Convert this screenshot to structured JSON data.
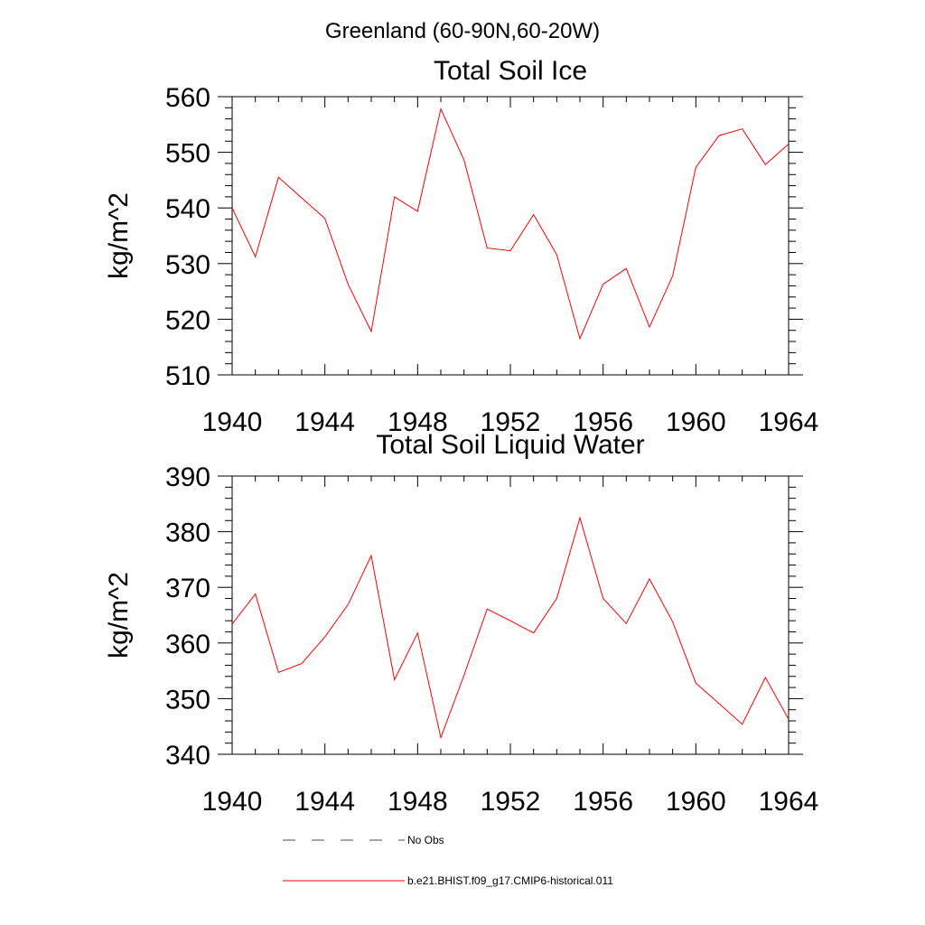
{
  "figure": {
    "title": "Greenland (60-90N,60-20W)"
  },
  "chart_data": [
    {
      "type": "line",
      "title": "Total Soil Ice",
      "xlabel": "",
      "ylabel": "kg/m^2",
      "xlim": [
        1940,
        1964
      ],
      "ylim": [
        510,
        560
      ],
      "x_ticks": [
        1940,
        1944,
        1948,
        1952,
        1956,
        1960,
        1964
      ],
      "y_ticks": [
        510,
        520,
        530,
        540,
        550,
        560
      ],
      "grid": false,
      "series": [
        {
          "name": "b.e21.BHIST.f09_g17.CMIP6-historical.011",
          "color": "#ff0000",
          "x": [
            1940,
            1941,
            1942,
            1943,
            1944,
            1945,
            1946,
            1947,
            1948,
            1949,
            1950,
            1951,
            1952,
            1953,
            1954,
            1955,
            1956,
            1957,
            1958,
            1959,
            1960,
            1961,
            1962,
            1963,
            1964
          ],
          "y": [
            540.0,
            531.2,
            545.5,
            541.8,
            538.1,
            526.3,
            517.8,
            542.0,
            539.4,
            557.8,
            548.6,
            532.8,
            532.3,
            538.8,
            531.6,
            516.5,
            526.3,
            529.1,
            518.6,
            527.8,
            547.3,
            553.0,
            554.2,
            547.8,
            551.5
          ]
        }
      ]
    },
    {
      "type": "line",
      "title": "Total Soil Liquid Water",
      "xlabel": "",
      "ylabel": "kg/m^2",
      "xlim": [
        1940,
        1964
      ],
      "ylim": [
        340,
        390
      ],
      "x_ticks": [
        1940,
        1944,
        1948,
        1952,
        1956,
        1960,
        1964
      ],
      "y_ticks": [
        340,
        350,
        360,
        370,
        380,
        390
      ],
      "grid": false,
      "series": [
        {
          "name": "b.e21.BHIST.f09_g17.CMIP6-historical.011",
          "color": "#ff0000",
          "x": [
            1940,
            1941,
            1942,
            1943,
            1944,
            1945,
            1946,
            1947,
            1948,
            1949,
            1950,
            1951,
            1952,
            1953,
            1954,
            1955,
            1956,
            1957,
            1958,
            1959,
            1960,
            1961,
            1962,
            1963,
            1964
          ],
          "y": [
            363.4,
            368.8,
            354.7,
            356.3,
            361.1,
            366.9,
            375.7,
            353.4,
            361.8,
            343.0,
            354.2,
            366.1,
            364.0,
            361.8,
            368.0,
            382.5,
            368.0,
            363.5,
            371.5,
            363.8,
            352.8,
            349.1,
            345.4,
            353.8,
            346.3
          ]
        }
      ]
    }
  ],
  "legend": {
    "placement": "bottom",
    "items": [
      {
        "label": "No Obs",
        "style": "dashed",
        "color": "#4a4a6a"
      },
      {
        "label": "b.e21.BHIST.f09_g17.CMIP6-historical.011",
        "style": "solid",
        "color": "#ff0000"
      }
    ]
  }
}
